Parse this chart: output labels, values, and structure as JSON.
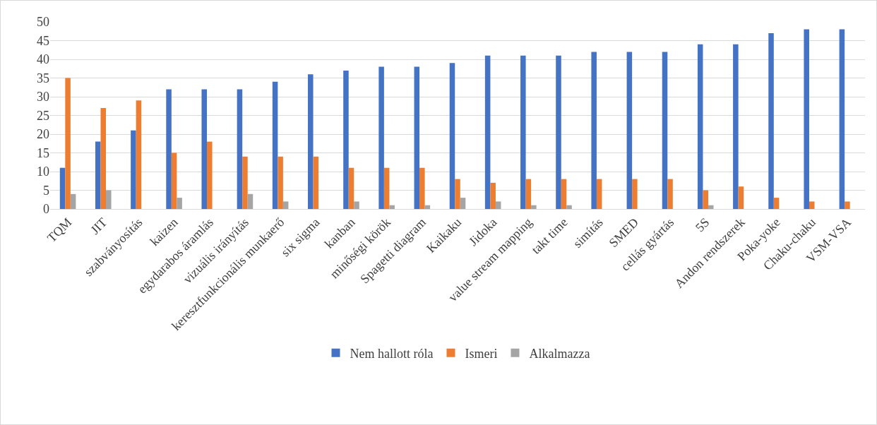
{
  "chart_data": {
    "type": "bar",
    "categories": [
      "TQM",
      "JIT",
      "szabványosítás",
      "kaizen",
      "egydarabos áramlás",
      "vizuális irányítás",
      "keresztfunkcionális munkaerő",
      "six sigma",
      "kanban",
      "minőségi körök",
      "Spagetti diagram",
      "Kaikaku",
      "Jidoka",
      "value stream mapping",
      "takt time",
      "simítás",
      "SMED",
      "cellás gyártás",
      "5S",
      "Andon rendszerek",
      "Poka-yoke",
      "Chaku-chaku",
      "VSM-VSA"
    ],
    "series": [
      {
        "name": "Nem hallott róla",
        "color": "#4472c4",
        "values": [
          11,
          18,
          21,
          32,
          32,
          32,
          34,
          36,
          37,
          38,
          38,
          39,
          41,
          41,
          41,
          42,
          42,
          42,
          44,
          44,
          47,
          48,
          48
        ]
      },
      {
        "name": "Ismeri",
        "color": "#ed7d31",
        "values": [
          35,
          27,
          29,
          15,
          18,
          14,
          14,
          14,
          11,
          11,
          11,
          8,
          7,
          8,
          8,
          8,
          8,
          8,
          5,
          6,
          3,
          2,
          2
        ]
      },
      {
        "name": "Alkalmazza",
        "color": "#a5a5a5",
        "values": [
          4,
          5,
          0,
          3,
          0,
          4,
          2,
          0,
          2,
          1,
          1,
          3,
          2,
          1,
          1,
          0,
          0,
          0,
          1,
          0,
          0,
          0,
          0
        ]
      }
    ],
    "ylim": [
      0,
      50
    ],
    "yticks": [
      0,
      5,
      10,
      15,
      20,
      25,
      30,
      35,
      40,
      45,
      50
    ],
    "grid": "y",
    "legend": "bottom"
  }
}
